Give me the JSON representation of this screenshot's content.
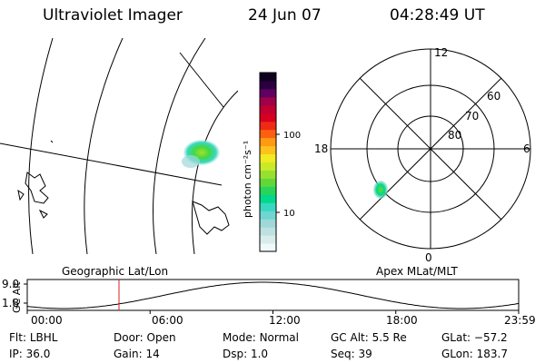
{
  "header": {
    "title": "Ultraviolet Imager",
    "date": "24 Jun 07",
    "time": "04:28:49 UT"
  },
  "colorbar": {
    "unit_label": "photon cm⁻²s⁻¹",
    "ticks": [
      "100",
      "10"
    ],
    "colors": [
      "#f0f8f8",
      "#d8ecec",
      "#bfe0e0",
      "#9ed8d8",
      "#6fd6d0",
      "#38d8c0",
      "#00d88c",
      "#29d45a",
      "#60d83a",
      "#98e030",
      "#c8ea28",
      "#f2ea22",
      "#ffc21c",
      "#ff9a12",
      "#ff6010",
      "#f02a14",
      "#d80020",
      "#c00030",
      "#a00048",
      "#600060",
      "#2a0040",
      "#100020"
    ]
  },
  "polar_plot": {
    "labels_lat": [
      "60",
      "70",
      "80"
    ],
    "labels_mlt": [
      "12",
      "18",
      "6",
      "0"
    ]
  },
  "alt_panel": {
    "left_title": "Geographic Lat/Lon",
    "right_title": "Apex MLat/MLT",
    "axis_label": "GC Alt",
    "y_ticks": [
      "9.0",
      "1.8"
    ],
    "x_ticks": [
      "00:00",
      "06:00",
      "12:00",
      "18:00",
      "23:59"
    ],
    "current_time_marker_hours": 4.48
  },
  "footer": {
    "row1": [
      {
        "label": "Flt:",
        "value": "LBHL"
      },
      {
        "label": "Door:",
        "value": "Open"
      },
      {
        "label": "Mode:",
        "value": "Normal"
      },
      {
        "label": "GC Alt:",
        "value": "5.5 Re"
      },
      {
        "label": "GLat:",
        "value": "−57.2"
      }
    ],
    "row2": [
      {
        "label": "IP:",
        "value": "36.0"
      },
      {
        "label": "Gain:",
        "value": "14"
      },
      {
        "label": "Dsp:",
        "value": "1.0"
      },
      {
        "label": "Seq:",
        "value": "39"
      },
      {
        "label": "GLon:",
        "value": "183.7"
      }
    ]
  }
}
